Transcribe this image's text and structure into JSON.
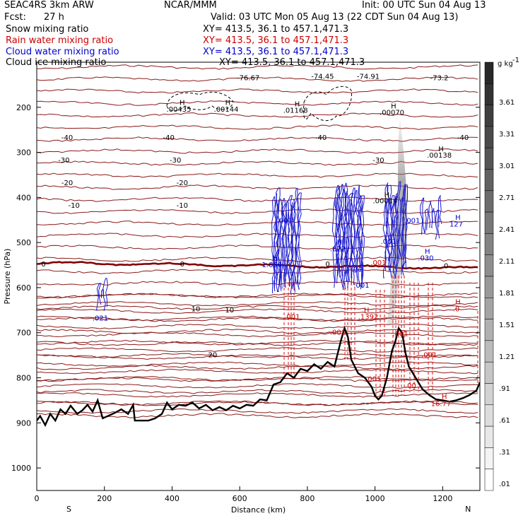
{
  "header": {
    "model": "SEAC4RS  3km ARW",
    "org": "NCAR/MMM",
    "init": "Init: 00 UTC Sun 04 Aug 13",
    "fcst_label": "Fcst:",
    "fcst_value": "27 h",
    "valid": "Valid: 03 UTC Mon 05 Aug 13 (22 CDT Sun 04 Aug 13)"
  },
  "fields": [
    {
      "name": "Snow mixing ratio",
      "xy": "XY= 413.5, 36.1 to 457.1,471.3",
      "color": "#000000"
    },
    {
      "name": "Rain water mixing ratio",
      "xy": "XY= 413.5, 36.1 to 457.1,471.3",
      "color": "#cc0000"
    },
    {
      "name": "Cloud water mixing ratio",
      "xy": "XY= 413.5, 36.1 to 457.1,471.3",
      "color": "#0000cc"
    },
    {
      "name": "Cloud ice mixing ratio",
      "xy": "XY= 413.5, 36.1 to 457.1,471.3",
      "color": "#000000"
    }
  ],
  "chart_data": {
    "type": "cross-section",
    "xlabel": "Distance (km)",
    "ylabel": "Pressure (hPa)",
    "xlim": [
      0,
      1310
    ],
    "ylim": [
      1050,
      100
    ],
    "x_ticks": [
      0,
      200,
      400,
      600,
      800,
      1000,
      1200
    ],
    "y_ticks": [
      200,
      300,
      400,
      500,
      600,
      700,
      800,
      900,
      1000
    ],
    "endpoints": {
      "left": "S",
      "right": "N"
    },
    "colorbar": {
      "unit": "g kg",
      "unit_exp": "-1",
      "labels": [
        "3.61",
        "3.31",
        "3.01",
        "2.71",
        "2.41",
        "2.11",
        "1.81",
        "1.51",
        "1.21",
        ".91",
        ".61",
        ".31",
        ".01"
      ]
    },
    "temperature_labels": [
      {
        "value": "-76.67",
        "x": 625,
        "p": 135
      },
      {
        "value": "-74.45",
        "x": 845,
        "p": 132
      },
      {
        "value": "-74.91",
        "x": 980,
        "p": 132
      },
      {
        "value": "-73.2",
        "x": 1190,
        "p": 135
      },
      {
        "value": "-40",
        "x": 90,
        "p": 268
      },
      {
        "value": "-40",
        "x": 390,
        "p": 268
      },
      {
        "value": "-40",
        "x": 840,
        "p": 268
      },
      {
        "value": "-40",
        "x": 1260,
        "p": 268
      },
      {
        "value": "-30",
        "x": 80,
        "p": 318
      },
      {
        "value": "-30",
        "x": 410,
        "p": 318
      },
      {
        "value": "-30",
        "x": 1010,
        "p": 318
      },
      {
        "value": "-20",
        "x": 90,
        "p": 368
      },
      {
        "value": "-20",
        "x": 430,
        "p": 368
      },
      {
        "value": "-10",
        "x": 110,
        "p": 418
      },
      {
        "value": "-10",
        "x": 430,
        "p": 418
      },
      {
        "value": "0",
        "x": 20,
        "p": 548
      },
      {
        "value": "0",
        "x": 430,
        "p": 548
      },
      {
        "value": "0",
        "x": 860,
        "p": 548
      },
      {
        "value": "0",
        "x": 1210,
        "p": 552
      },
      {
        "value": "10",
        "x": 470,
        "p": 648
      },
      {
        "value": "10",
        "x": 570,
        "p": 650
      },
      {
        "value": "20",
        "x": 520,
        "p": 750
      }
    ],
    "maxima_labels": [
      {
        "text": "H",
        "x": 430,
        "p": 190,
        "color": "#000000"
      },
      {
        "text": ".00435",
        "x": 420,
        "p": 205,
        "color": "#000000"
      },
      {
        "text": "H",
        "x": 565,
        "p": 190,
        "color": "#000000"
      },
      {
        "text": ".00144",
        "x": 560,
        "p": 205,
        "color": "#000000"
      },
      {
        "text": "H",
        "x": 770,
        "p": 193,
        "color": "#000000"
      },
      {
        "text": ".01168",
        "x": 765,
        "p": 207,
        "color": "#000000"
      },
      {
        "text": "H",
        "x": 1055,
        "p": 198,
        "color": "#000000"
      },
      {
        "text": ".00070",
        "x": 1050,
        "p": 212,
        "color": "#000000"
      },
      {
        "text": "H",
        "x": 1195,
        "p": 293,
        "color": "#000000"
      },
      {
        "text": ".00138",
        "x": 1190,
        "p": 307,
        "color": "#000000"
      },
      {
        "text": "H",
        "x": 1035,
        "p": 395,
        "color": "#000000"
      },
      {
        "text": ".00014",
        "x": 1030,
        "p": 408,
        "color": "#000000"
      },
      {
        "text": ".001",
        "x": 733,
        "p": 452,
        "color": "#0000cc"
      },
      {
        "text": "H",
        "x": 1245,
        "p": 445,
        "color": "#0000cc"
      },
      {
        "text": "127",
        "x": 1240,
        "p": 460,
        "color": "#0000cc"
      },
      {
        "text": ".001",
        "x": 1110,
        "p": 452,
        "color": "#0000cc"
      },
      {
        "text": ".001",
        "x": 1040,
        "p": 498,
        "color": "#0000cc"
      },
      {
        "text": "H",
        "x": 895,
        "p": 500,
        "color": "#0000cc"
      },
      {
        "text": ".822",
        "x": 890,
        "p": 515,
        "color": "#0000cc"
      },
      {
        "text": "H",
        "x": 1155,
        "p": 520,
        "color": "#0000cc"
      },
      {
        "text": ".030",
        "x": 1150,
        "p": 535,
        "color": "#0000cc"
      },
      {
        "text": "H",
        "x": 705,
        "p": 535,
        "color": "#0000cc"
      },
      {
        "text": "1.656",
        "x": 695,
        "p": 550,
        "color": "#0000cc"
      },
      {
        "text": ".001",
        "x": 1010,
        "p": 545,
        "color": "#cc0000"
      },
      {
        "text": ".32",
        "x": 948,
        "p": 560,
        "color": "#0000cc"
      },
      {
        "text": ".001",
        "x": 960,
        "p": 595,
        "color": "#0000cc"
      },
      {
        "text": ".021",
        "x": 188,
        "p": 668,
        "color": "#0000cc"
      },
      {
        "text": ".001",
        "x": 755,
        "p": 665,
        "color": "#cc0000"
      },
      {
        "text": "H",
        "x": 1245,
        "p": 632,
        "color": "#cc0000"
      },
      {
        "text": ".0",
        "x": 1240,
        "p": 648,
        "color": "#cc0000"
      },
      {
        "text": ".1392",
        "x": 980,
        "p": 665,
        "color": "#cc0000"
      },
      {
        "text": "H",
        "x": 975,
        "p": 650,
        "color": "#cc0000"
      },
      {
        "text": ".001",
        "x": 890,
        "p": 700,
        "color": "#cc0000"
      },
      {
        "text": ".001",
        "x": 1075,
        "p": 703,
        "color": "#cc0000"
      },
      {
        "text": ".001",
        "x": 1160,
        "p": 750,
        "color": "#cc0000"
      },
      {
        "text": ".001",
        "x": 995,
        "p": 803,
        "color": "#cc0000"
      },
      {
        "text": ".00",
        "x": 1105,
        "p": 818,
        "color": "#cc0000"
      },
      {
        "text": "H",
        "x": 1205,
        "p": 842,
        "color": "#cc0000"
      },
      {
        "text": "16.77",
        "x": 1195,
        "p": 858,
        "color": "#cc0000"
      }
    ]
  }
}
